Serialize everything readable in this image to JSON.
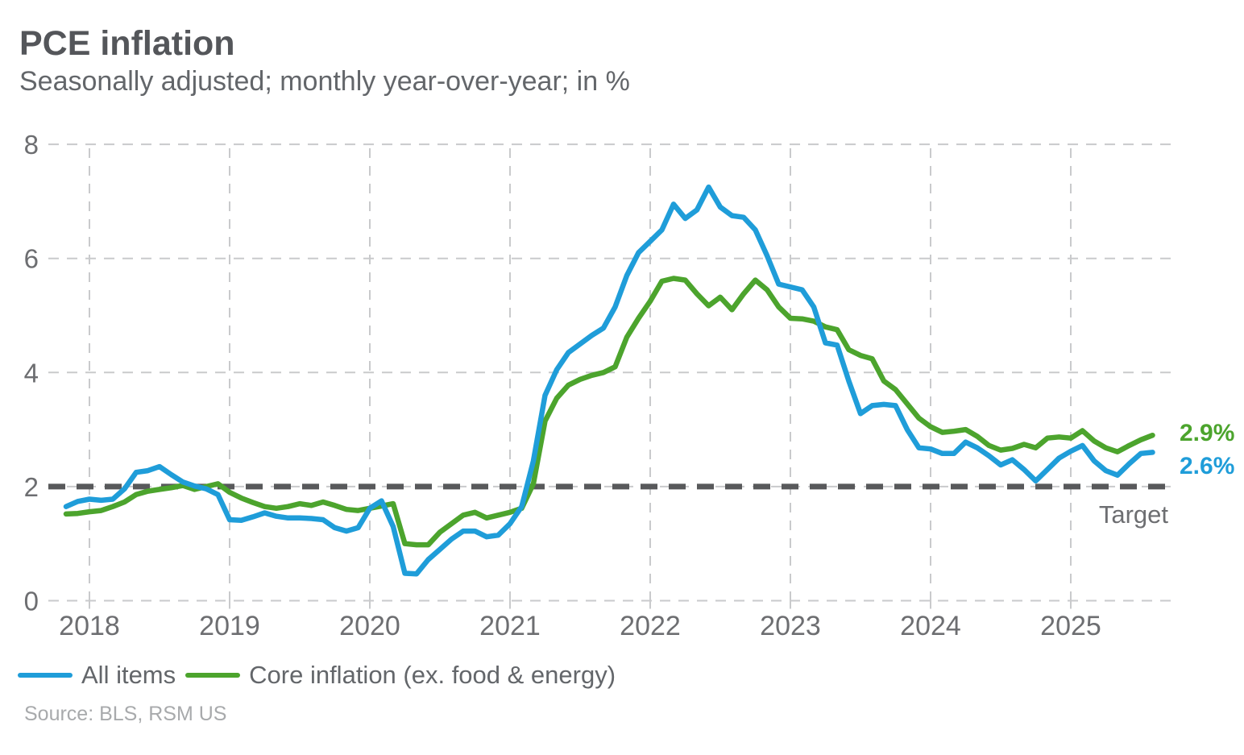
{
  "title": "PCE inflation",
  "subtitle": "Seasonally adjusted; monthly year-over-year; in %",
  "source": "Source: BLS, RSM US",
  "colors": {
    "all_items_blue": "#1F9DD9",
    "core_green": "#4CA42D",
    "target_line": "#58595B",
    "gridline": "#C9CACC",
    "tick_text": "#6D6E71",
    "title_text": "#54565A",
    "subtitle_text": "#63666A",
    "source_text": "#A8AAAC"
  },
  "legend": [
    {
      "id": "all-items",
      "label": "All items",
      "color": "#1F9DD9"
    },
    {
      "id": "core-inflation",
      "label": "Core inflation (ex. food & energy)",
      "color": "#4CA42D"
    }
  ],
  "chart_data": {
    "type": "line",
    "title": "PCE inflation",
    "subtitle": "Seasonally adjusted; monthly year-over-year; in %",
    "x_start_month": "2017-11",
    "x_end_month": "2025-08",
    "x_tick_labels": [
      "2018",
      "2019",
      "2020",
      "2021",
      "2022",
      "2023",
      "2024",
      "2025"
    ],
    "y_ticks": [
      0,
      2,
      4,
      6,
      8
    ],
    "ylim": [
      0,
      8
    ],
    "grid": "dashed",
    "legend_position": "bottom-left",
    "target_line": {
      "value": 2,
      "label": "Target",
      "style": "dashed-bold"
    },
    "series": [
      {
        "name": "All items",
        "color": "#1F9DD9",
        "end_label": "2.6%",
        "values": [
          1.65,
          1.74,
          1.78,
          1.76,
          1.78,
          1.96,
          2.25,
          2.28,
          2.35,
          2.21,
          2.08,
          2.01,
          1.96,
          1.86,
          1.42,
          1.41,
          1.47,
          1.54,
          1.48,
          1.45,
          1.45,
          1.44,
          1.42,
          1.28,
          1.22,
          1.28,
          1.62,
          1.75,
          1.3,
          0.48,
          0.47,
          0.72,
          0.9,
          1.08,
          1.22,
          1.22,
          1.12,
          1.15,
          1.35,
          1.65,
          2.45,
          3.6,
          4.05,
          4.35,
          4.5,
          4.65,
          4.78,
          5.15,
          5.7,
          6.1,
          6.3,
          6.5,
          6.95,
          6.7,
          6.85,
          7.25,
          6.9,
          6.75,
          6.72,
          6.5,
          6.05,
          5.55,
          5.5,
          5.45,
          5.15,
          4.52,
          4.48,
          3.85,
          3.28,
          3.42,
          3.44,
          3.42,
          3.0,
          2.68,
          2.66,
          2.58,
          2.58,
          2.78,
          2.68,
          2.54,
          2.38,
          2.47,
          2.3,
          2.1,
          2.3,
          2.5,
          2.62,
          2.72,
          2.45,
          2.28,
          2.2,
          2.4,
          2.58,
          2.6
        ]
      },
      {
        "name": "Core inflation (ex. food & energy)",
        "color": "#4CA42D",
        "end_label": "2.9%",
        "values": [
          1.52,
          1.53,
          1.56,
          1.58,
          1.65,
          1.73,
          1.86,
          1.92,
          1.95,
          1.98,
          2.02,
          1.95,
          2.0,
          2.05,
          1.9,
          1.8,
          1.72,
          1.65,
          1.62,
          1.65,
          1.7,
          1.67,
          1.73,
          1.67,
          1.6,
          1.58,
          1.62,
          1.66,
          1.7,
          1.0,
          0.98,
          0.98,
          1.2,
          1.35,
          1.5,
          1.55,
          1.45,
          1.5,
          1.55,
          1.62,
          2.05,
          3.15,
          3.55,
          3.78,
          3.88,
          3.95,
          4.0,
          4.1,
          4.62,
          4.95,
          5.25,
          5.6,
          5.65,
          5.62,
          5.38,
          5.17,
          5.32,
          5.1,
          5.38,
          5.62,
          5.45,
          5.15,
          4.95,
          4.94,
          4.9,
          4.8,
          4.75,
          4.4,
          4.3,
          4.24,
          3.85,
          3.7,
          3.45,
          3.2,
          3.05,
          2.95,
          2.97,
          3.0,
          2.88,
          2.72,
          2.64,
          2.67,
          2.74,
          2.68,
          2.85,
          2.87,
          2.85,
          2.98,
          2.8,
          2.68,
          2.61,
          2.72,
          2.82,
          2.9
        ]
      }
    ]
  }
}
